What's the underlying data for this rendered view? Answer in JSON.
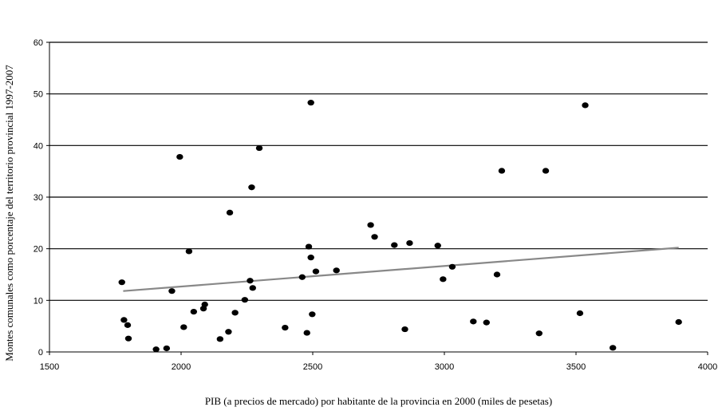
{
  "chart_data": {
    "type": "scatter",
    "title": "",
    "xlabel": "PIB (a precios de mercado) por habitante de la provincia en 2000 (miles de pesetas)",
    "ylabel": "Montes comunales como porcentaje del territorio provincial 1997-2007",
    "xlim": [
      1500,
      4000
    ],
    "ylim": [
      0,
      60
    ],
    "xticks": [
      "1500",
      "2000",
      "2500",
      "3000",
      "3500",
      "4000"
    ],
    "yticks": [
      "0",
      "10",
      "20",
      "30",
      "40",
      "50",
      "60"
    ],
    "grid": "horizontal",
    "trendline": {
      "type": "linear",
      "x": [
        1780,
        3890
      ],
      "y": [
        11.8,
        20.2
      ],
      "color": "#888888"
    },
    "series": [
      {
        "marker_color": "#000000",
        "points": [
          [
            1775,
            13.5
          ],
          [
            1783,
            6.2
          ],
          [
            1797,
            5.2
          ],
          [
            1800,
            2.6
          ],
          [
            1905,
            0.5
          ],
          [
            1945,
            0.7
          ],
          [
            1965,
            11.8
          ],
          [
            1995,
            37.8
          ],
          [
            2010,
            4.8
          ],
          [
            2030,
            19.5
          ],
          [
            2048,
            7.8
          ],
          [
            2085,
            8.4
          ],
          [
            2090,
            9.2
          ],
          [
            2148,
            2.5
          ],
          [
            2180,
            3.9
          ],
          [
            2185,
            27.0
          ],
          [
            2205,
            7.6
          ],
          [
            2242,
            10.1
          ],
          [
            2262,
            13.8
          ],
          [
            2268,
            31.9
          ],
          [
            2272,
            12.4
          ],
          [
            2297,
            39.5
          ],
          [
            2395,
            4.7
          ],
          [
            2460,
            14.5
          ],
          [
            2478,
            3.7
          ],
          [
            2485,
            20.4
          ],
          [
            2493,
            18.3
          ],
          [
            2493,
            48.3
          ],
          [
            2498,
            7.3
          ],
          [
            2512,
            15.6
          ],
          [
            2590,
            15.8
          ],
          [
            2720,
            24.6
          ],
          [
            2735,
            22.3
          ],
          [
            2810,
            20.7
          ],
          [
            2850,
            4.4
          ],
          [
            2868,
            21.1
          ],
          [
            2975,
            20.6
          ],
          [
            2995,
            14.1
          ],
          [
            3030,
            16.5
          ],
          [
            3110,
            5.9
          ],
          [
            3160,
            5.7
          ],
          [
            3200,
            15.0
          ],
          [
            3218,
            35.1
          ],
          [
            3360,
            3.6
          ],
          [
            3385,
            35.1
          ],
          [
            3515,
            7.5
          ],
          [
            3535,
            47.8
          ],
          [
            3640,
            0.8
          ],
          [
            3890,
            5.8
          ]
        ]
      }
    ]
  }
}
